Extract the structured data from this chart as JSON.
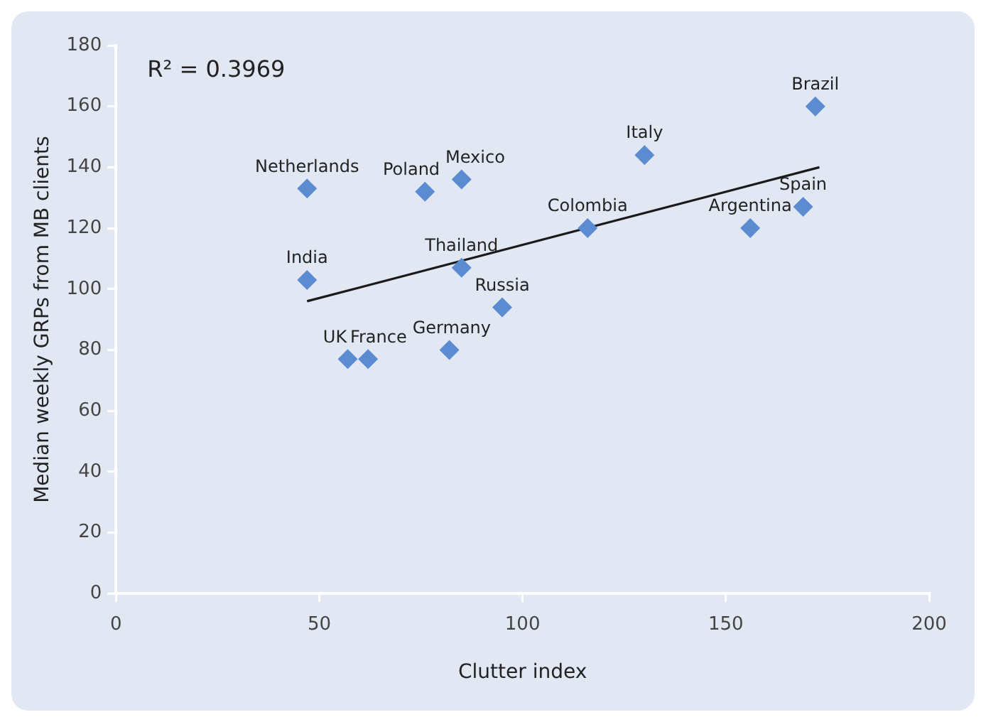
{
  "chart_data": {
    "type": "scatter",
    "xlabel": "Clutter index",
    "ylabel": "Median weekly GRPs from MB clients",
    "marker": "diamond",
    "legend": false,
    "grid": false,
    "xlim": [
      0,
      200
    ],
    "xticks": [
      0,
      50,
      100,
      150,
      200
    ],
    "ylim": [
      0,
      180
    ],
    "yticks": [
      0,
      20,
      40,
      60,
      80,
      100,
      120,
      140,
      160,
      180
    ],
    "series": [
      {
        "color": "#5b8bd0",
        "x": [
          47,
          47,
          57,
          62,
          76,
          85,
          85,
          82,
          95,
          116,
          130,
          156,
          169,
          172
        ],
        "values": [
          133,
          103,
          77,
          77,
          132,
          136,
          107,
          80,
          94,
          120,
          144,
          120,
          127,
          160
        ]
      },
      {
        "type": "line",
        "color": "#1a1a1a",
        "marker": "none",
        "x": [
          47,
          173
        ],
        "values": [
          96,
          140
        ]
      }
    ],
    "annotations": [
      "R² = 0.3969",
      {
        "text": "Netherlands",
        "x": 47,
        "y": 133
      },
      {
        "text": "India",
        "x": 47,
        "y": 103
      },
      {
        "text": "UK",
        "x": 57,
        "y": 77
      },
      {
        "text": "France",
        "x": 62,
        "y": 77
      },
      {
        "text": "Poland",
        "x": 76,
        "y": 132
      },
      {
        "text": "Mexico",
        "x": 85,
        "y": 136
      },
      {
        "text": "Thailand",
        "x": 85,
        "y": 107
      },
      {
        "text": "Germany",
        "x": 82,
        "y": 80
      },
      {
        "text": "Russia",
        "x": 95,
        "y": 94
      },
      {
        "text": "Colombia",
        "x": 116,
        "y": 120
      },
      {
        "text": "Italy",
        "x": 130,
        "y": 144
      },
      {
        "text": "Argentina",
        "x": 156,
        "y": 120
      },
      {
        "text": "Spain",
        "x": 169,
        "y": 127
      },
      {
        "text": "Brazil",
        "x": 172,
        "y": 160
      }
    ]
  }
}
